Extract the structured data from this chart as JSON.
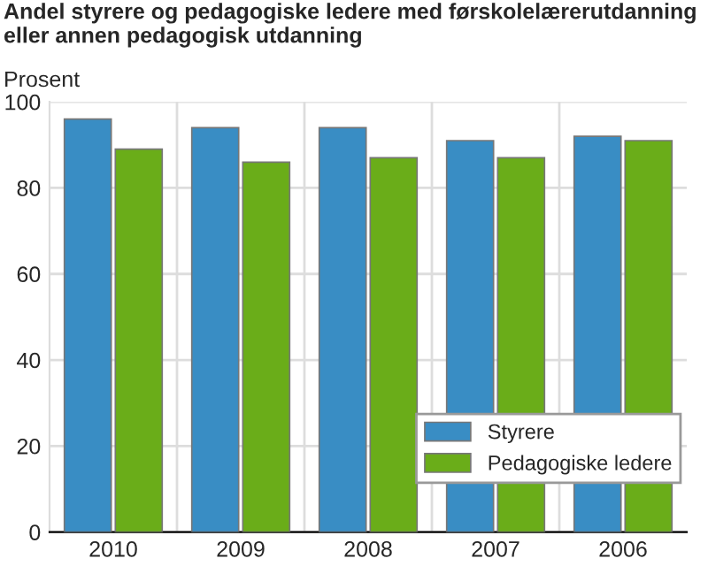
{
  "chart_data": {
    "type": "bar",
    "title": "Andel styrere og pedagogiske ledere med førskolelærerutdanning eller annen pedagogisk utdanning",
    "ylabel": "Prosent",
    "categories": [
      "2010",
      "2009",
      "2008",
      "2007",
      "2006"
    ],
    "series": [
      {
        "name": "Styrere",
        "color": "#398dc4",
        "values": [
          96,
          94,
          94,
          91,
          92
        ]
      },
      {
        "name": "Pedagogiske ledere",
        "color": "#6aad19",
        "values": [
          89,
          86,
          87,
          87,
          91
        ]
      }
    ],
    "ylim": [
      0,
      100
    ],
    "yticks": [
      0,
      20,
      40,
      60,
      80,
      100
    ],
    "grid": true,
    "legend": "bottom right"
  }
}
